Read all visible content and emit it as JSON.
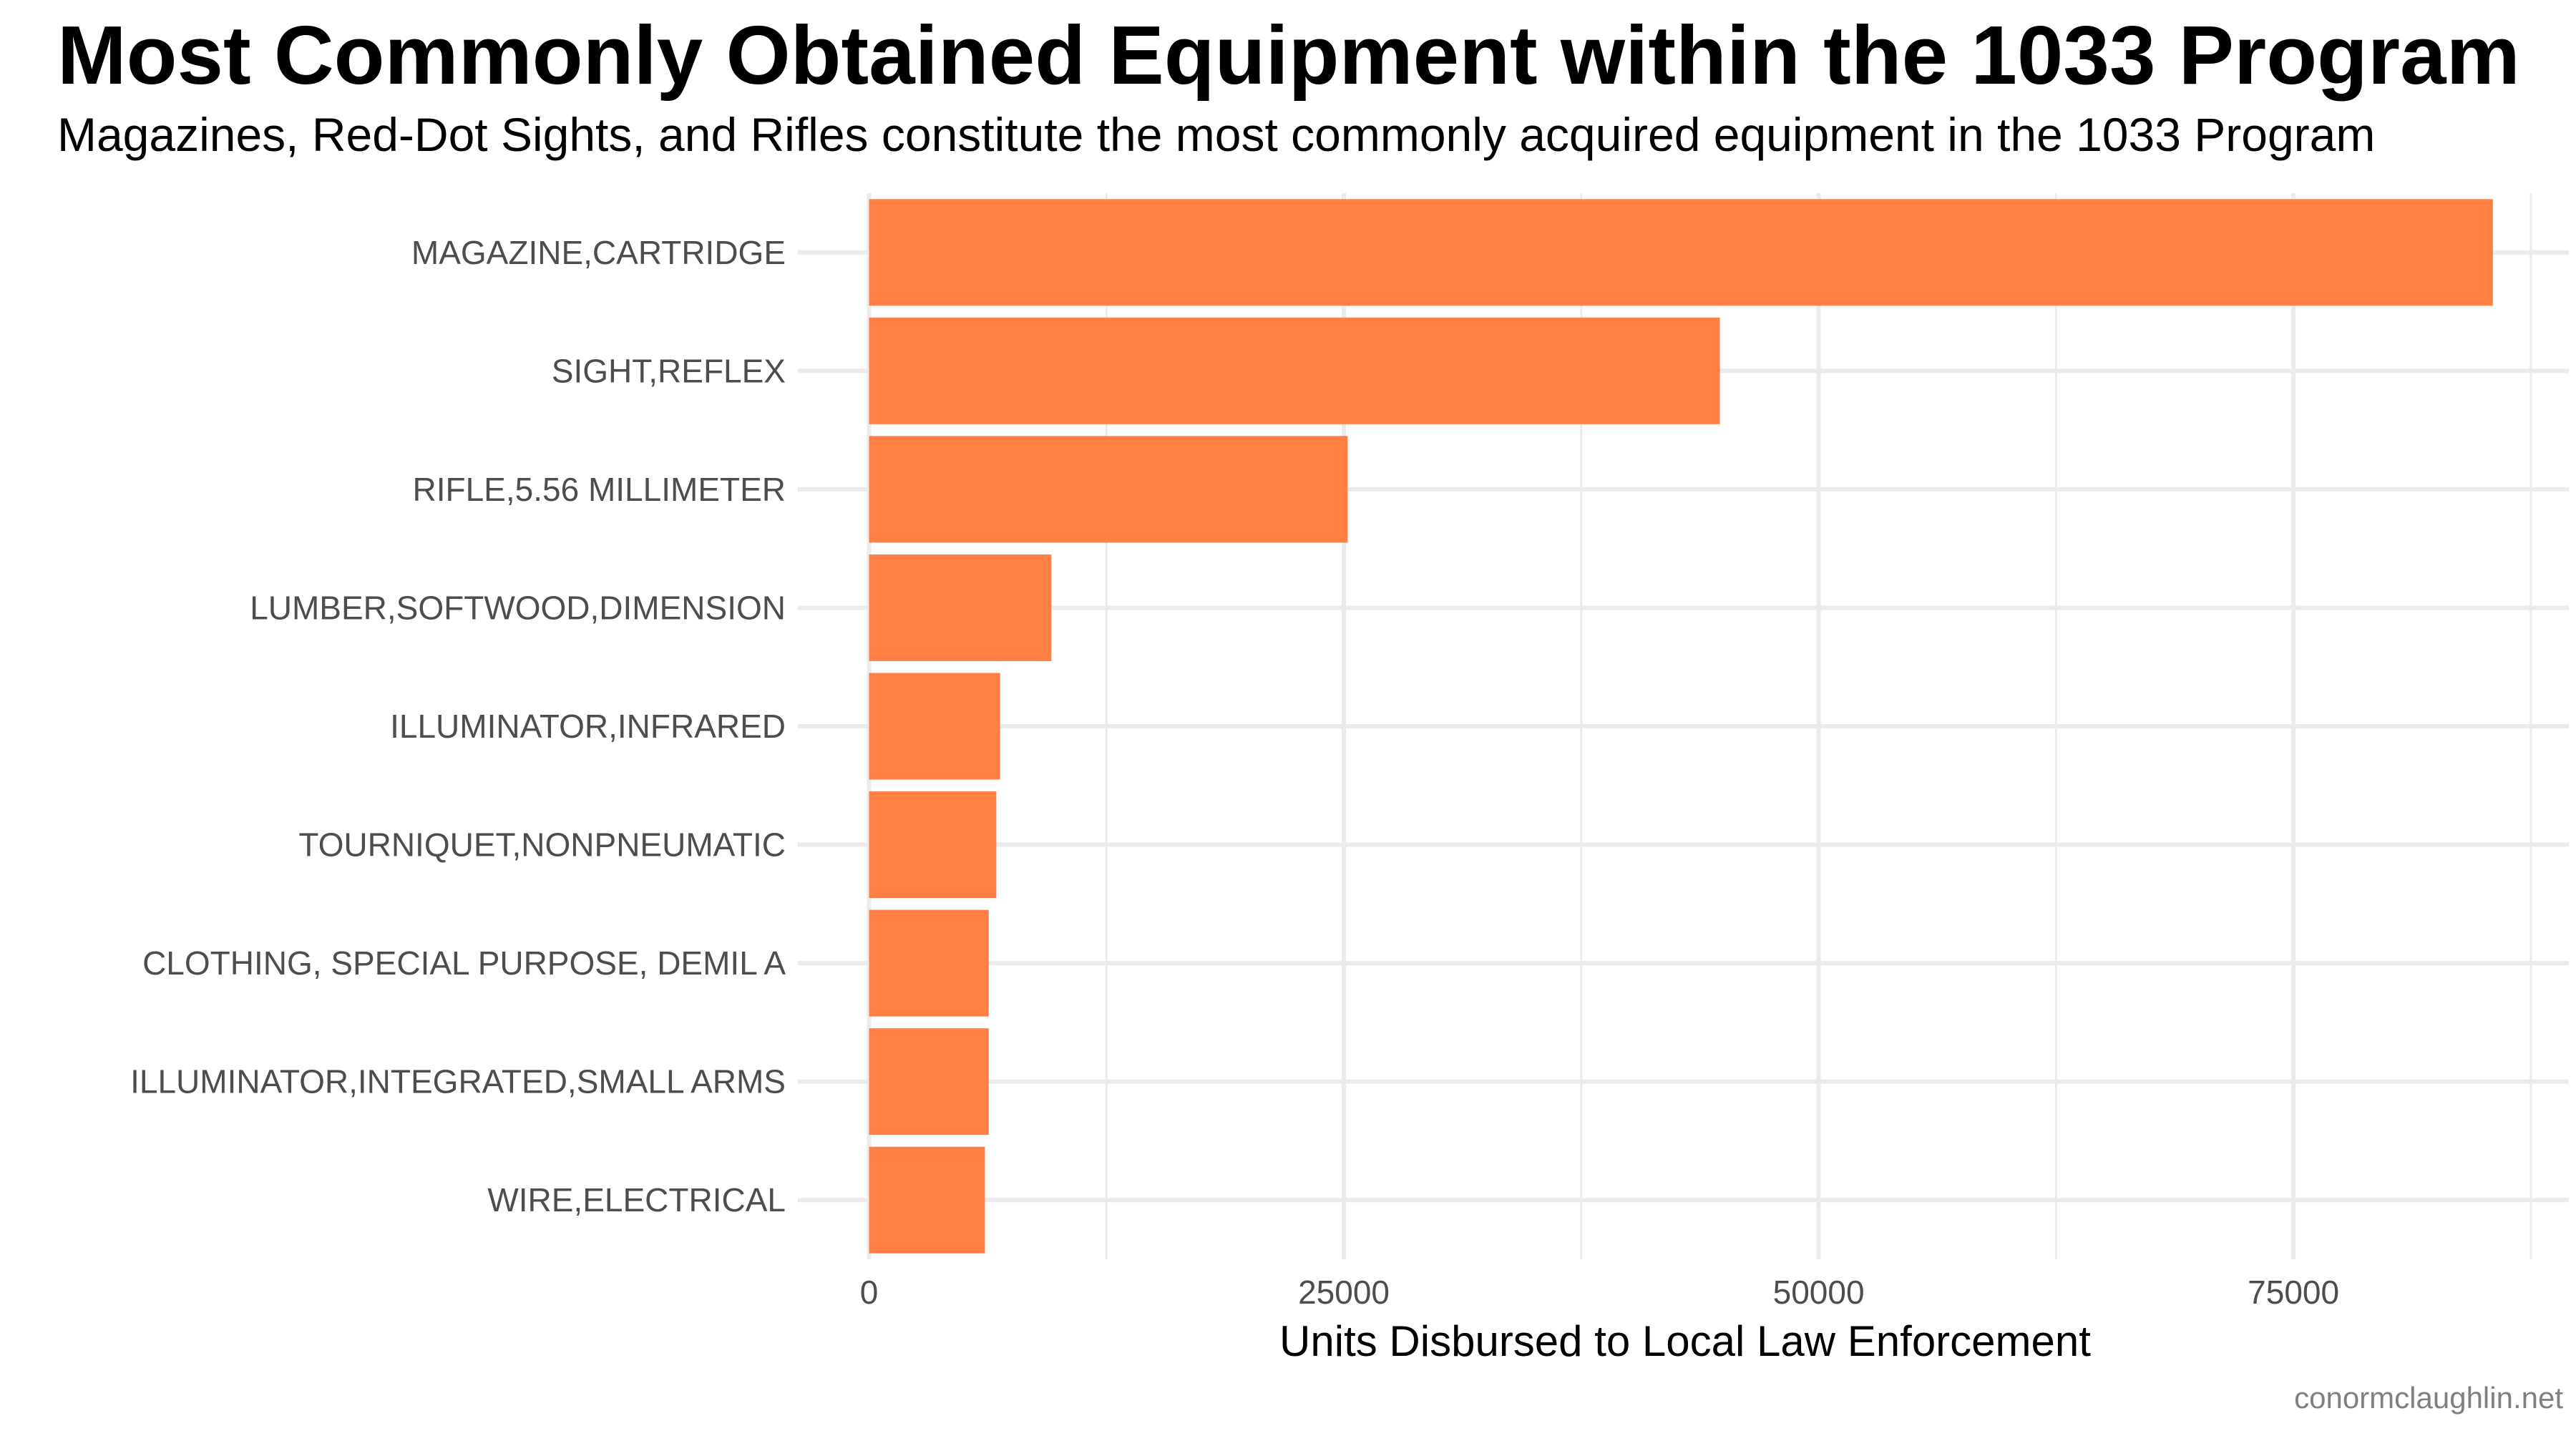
{
  "chart_data": {
    "type": "bar",
    "orientation": "horizontal",
    "title": "Most Commonly Obtained Equipment within the 1033 Program",
    "subtitle": "Magazines, Red-Dot Sights, and Rifles constitute the most commonly acquired equipment in the 1033 Program",
    "xlabel": "Units Disbursed to Local Law Enforcement",
    "ylabel": "",
    "caption": "conormclaughlin.net",
    "categories": [
      "MAGAZINE,CARTRIDGE",
      "SIGHT,REFLEX",
      "RIFLE,5.56 MILLIMETER",
      "LUMBER,SOFTWOOD,DIMENSION",
      "ILLUMINATOR,INFRARED",
      "TOURNIQUET,NONPNEUMATIC",
      "CLOTHING, SPECIAL PURPOSE, DEMIL A",
      "ILLUMINATOR,INTEGRATED,SMALL ARMS",
      "WIRE,ELECTRICAL"
    ],
    "values": [
      85500,
      44800,
      25200,
      9600,
      6900,
      6700,
      6300,
      6300,
      6100
    ],
    "xlim": [
      -3750,
      89500
    ],
    "xticks": [
      0,
      25000,
      50000,
      75000
    ],
    "xtick_labels": [
      "0",
      "25000",
      "50000",
      "75000"
    ],
    "grid": true,
    "legend": "none",
    "colors": {
      "bar": "#FF7F45",
      "grid": "#EBEBEB",
      "tick_text": "#4D4D4D",
      "caption": "#808080"
    }
  }
}
